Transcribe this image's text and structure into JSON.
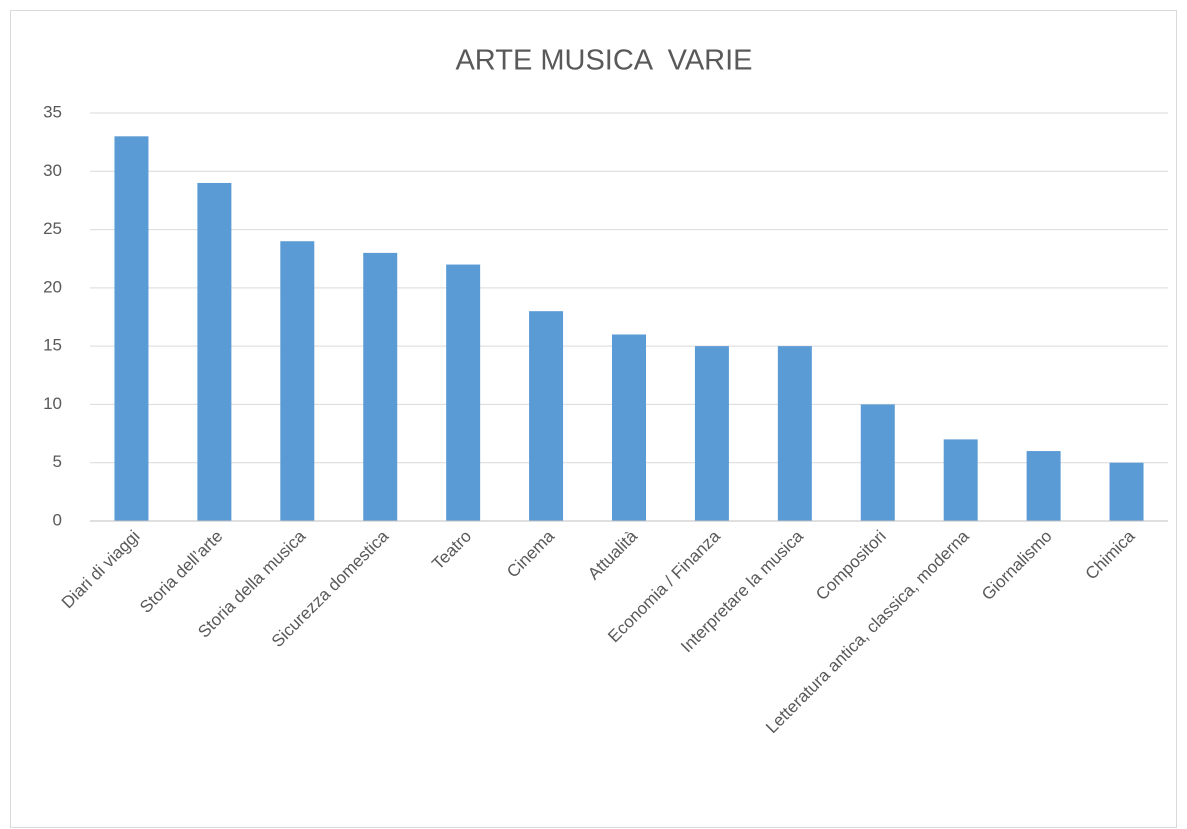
{
  "chart_data": {
    "type": "bar",
    "title": "ARTE MUSICA  VARIE",
    "categories": [
      "Diari di viaggi",
      "Storia dell’arte",
      "Storia della musica",
      "Sicurezza domestica",
      "Teatro",
      "Cinema",
      "Attualità",
      "Economia / Finanza",
      "Interpretare la musica",
      "Compositori",
      "Letteratura antica, classica, moderna",
      "Giornalismo",
      "Chimica"
    ],
    "values": [
      33,
      29,
      24,
      23,
      22,
      18,
      16,
      15,
      15,
      10,
      7,
      6,
      5
    ],
    "color": "#5b9bd5",
    "ylim": [
      0,
      35
    ],
    "yticks": [
      0,
      5,
      10,
      15,
      20,
      25,
      30,
      35
    ],
    "grid": true
  }
}
